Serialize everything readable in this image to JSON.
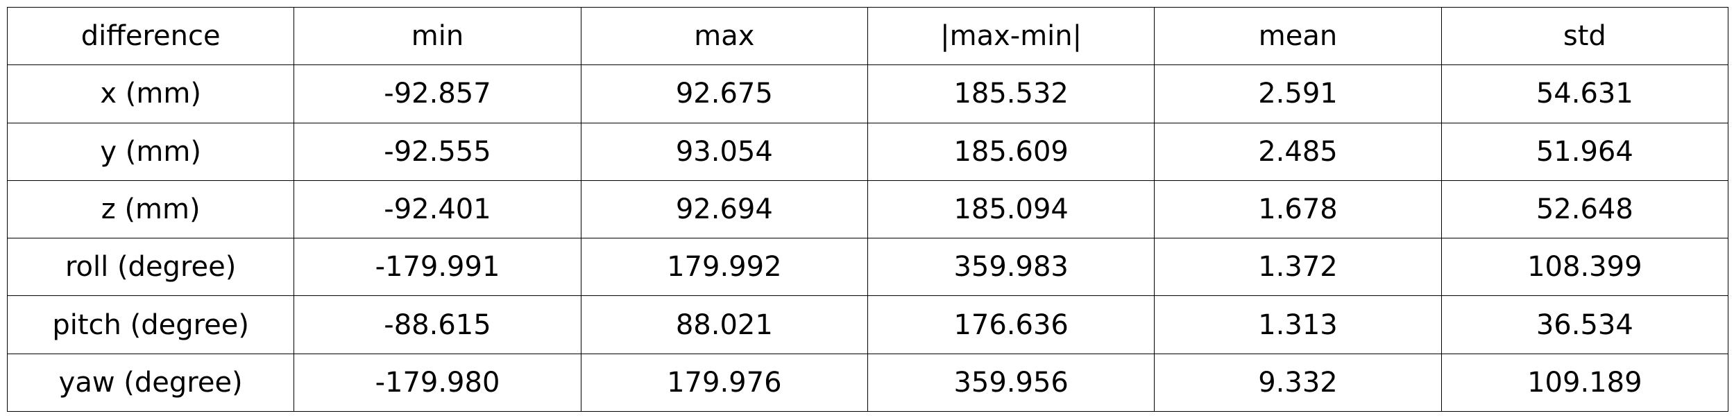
{
  "chart_data": {
    "type": "table",
    "columns": [
      "difference",
      "min",
      "max",
      "|max-min|",
      "mean",
      "std"
    ],
    "rows": [
      [
        "x (mm)",
        "-92.857",
        "92.675",
        "185.532",
        "2.591",
        "54.631"
      ],
      [
        "y (mm)",
        "-92.555",
        "93.054",
        "185.609",
        "2.485",
        "51.964"
      ],
      [
        "z (mm)",
        "-92.401",
        "92.694",
        "185.094",
        "1.678",
        "52.648"
      ],
      [
        "roll (degree)",
        "-179.991",
        "179.992",
        "359.983",
        "1.372",
        "108.399"
      ],
      [
        "pitch (degree)",
        "-88.615",
        "88.021",
        "176.636",
        "1.313",
        "36.534"
      ],
      [
        "yaw (degree)",
        "-179.980",
        "179.976",
        "359.956",
        "9.332",
        "109.189"
      ]
    ]
  }
}
